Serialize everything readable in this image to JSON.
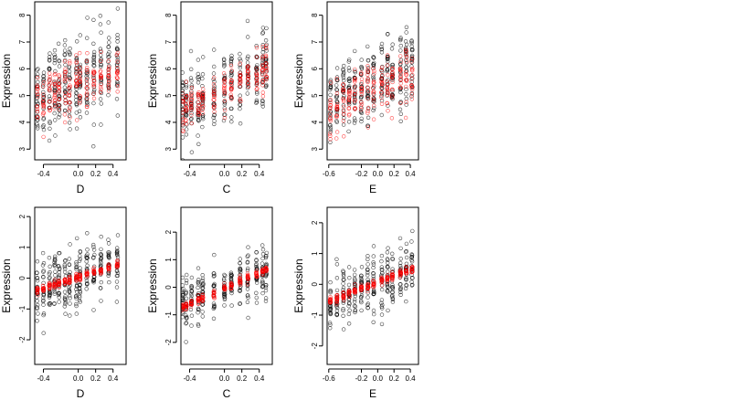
{
  "chart_data": [
    {
      "type": "scatter",
      "row": 0,
      "col": 0,
      "xlabel": "D",
      "ylabel": "Expression",
      "xlim": [
        -0.5,
        0.55
      ],
      "ylim": [
        2.6,
        8.5
      ],
      "xticks": [
        -0.4,
        0.0,
        0.2,
        0.4
      ],
      "xtick_labels": [
        "-0.4",
        "0.0",
        "0.2",
        "0.4"
      ],
      "yticks": [
        3,
        4,
        5,
        6,
        7,
        8
      ],
      "ytick_labels": [
        "3",
        "4",
        "5",
        "6",
        "7",
        "8"
      ],
      "series": [
        {
          "color": "#000000",
          "x_points": [
            -0.47,
            -0.4,
            -0.33,
            -0.27,
            -0.22,
            -0.15,
            -0.1,
            -0.02,
            0.02,
            0.1,
            0.18,
            0.26,
            0.35,
            0.45
          ],
          "y_mean": 5.6,
          "slope": 1.6,
          "spread": 1.4
        },
        {
          "color": "#ff0000",
          "x_points": [
            -0.47,
            -0.4,
            -0.33,
            -0.27,
            -0.22,
            -0.15,
            -0.1,
            -0.02,
            0.02,
            0.1,
            0.18,
            0.26,
            0.35,
            0.45
          ],
          "y_mean": 5.4,
          "slope": 1.6,
          "spread": 0.9
        }
      ]
    },
    {
      "type": "scatter",
      "row": 0,
      "col": 1,
      "xlabel": "C",
      "ylabel": "Expression",
      "xlim": [
        -0.5,
        0.55
      ],
      "ylim": [
        2.6,
        8.5
      ],
      "xticks": [
        -0.4,
        0.0,
        0.2,
        0.4
      ],
      "xtick_labels": [
        "-0.4",
        "0.0",
        "0.2",
        "0.4"
      ],
      "yticks": [
        3,
        4,
        5,
        6,
        7,
        8
      ],
      "ytick_labels": [
        "3",
        "4",
        "5",
        "6",
        "7",
        "8"
      ],
      "series": [
        {
          "color": "#000000",
          "x_points": [
            -0.48,
            -0.44,
            -0.38,
            -0.3,
            -0.25,
            -0.12,
            0.0,
            0.08,
            0.18,
            0.27,
            0.37,
            0.44,
            0.48
          ],
          "y_mean": 5.3,
          "slope": 2.2,
          "spread": 1.2
        },
        {
          "color": "#ff0000",
          "x_points": [
            -0.48,
            -0.44,
            -0.38,
            -0.3,
            -0.25,
            -0.12,
            0.0,
            0.08,
            0.18,
            0.27,
            0.37,
            0.44,
            0.48
          ],
          "y_mean": 5.3,
          "slope": 2.2,
          "spread": 0.7
        }
      ]
    },
    {
      "type": "scatter",
      "row": 0,
      "col": 2,
      "xlabel": "E",
      "ylabel": "Expression",
      "xlim": [
        -0.62,
        0.5
      ],
      "ylim": [
        2.6,
        8.5
      ],
      "xticks": [
        -0.6,
        -0.2,
        0.0,
        0.2,
        0.4
      ],
      "xtick_labels": [
        "-0.6",
        "-0.2",
        "0.0",
        "0.2",
        "0.4"
      ],
      "yticks": [
        3,
        4,
        5,
        6,
        7,
        8
      ],
      "ytick_labels": [
        "3",
        "4",
        "5",
        "6",
        "7",
        "8"
      ],
      "series": [
        {
          "color": "#000000",
          "x_points": [
            -0.58,
            -0.5,
            -0.42,
            -0.35,
            -0.28,
            -0.2,
            -0.12,
            -0.05,
            0.05,
            0.12,
            0.18,
            0.28,
            0.35,
            0.42
          ],
          "y_mean": 5.4,
          "slope": 2.0,
          "spread": 1.3
        },
        {
          "color": "#ff0000",
          "x_points": [
            -0.58,
            -0.5,
            -0.42,
            -0.35,
            -0.28,
            -0.2,
            -0.12,
            -0.05,
            0.05,
            0.12,
            0.18,
            0.28,
            0.35,
            0.42
          ],
          "y_mean": 5.2,
          "slope": 2.0,
          "spread": 0.9
        }
      ]
    },
    {
      "type": "scatter",
      "row": 1,
      "col": 0,
      "xlabel": "D",
      "ylabel": "Expression",
      "xlim": [
        -0.5,
        0.55
      ],
      "ylim": [
        -2.8,
        2.3
      ],
      "xticks": [
        -0.4,
        0.0,
        0.2,
        0.4
      ],
      "xtick_labels": [
        "-0.4",
        "0.0",
        "0.2",
        "0.4"
      ],
      "yticks": [
        -2,
        -1,
        0,
        1,
        2
      ],
      "ytick_labels": [
        "-2",
        "-1",
        "0",
        "1",
        "2"
      ],
      "series": [
        {
          "color": "#000000",
          "x_points": [
            -0.47,
            -0.4,
            -0.33,
            -0.27,
            -0.22,
            -0.15,
            -0.1,
            -0.02,
            0.02,
            0.1,
            0.18,
            0.26,
            0.35,
            0.45
          ],
          "y_mean": 0.05,
          "slope": 1.2,
          "spread": 0.9
        },
        {
          "color": "#ff0000",
          "x_points": [
            -0.47,
            -0.4,
            -0.33,
            -0.27,
            -0.22,
            -0.15,
            -0.1,
            -0.02,
            0.02,
            0.1,
            0.18,
            0.26,
            0.35,
            0.45
          ],
          "y_mean": 0.05,
          "slope": 1.2,
          "spread": 0.12
        }
      ]
    },
    {
      "type": "scatter",
      "row": 1,
      "col": 1,
      "xlabel": "C",
      "ylabel": "Expression",
      "xlim": [
        -0.5,
        0.55
      ],
      "ylim": [
        -2.8,
        2.9
      ],
      "xticks": [
        -0.4,
        0.0,
        0.2,
        0.4
      ],
      "xtick_labels": [
        "-0.4",
        "0.0",
        "0.2",
        "0.4"
      ],
      "yticks": [
        -2,
        -1,
        0,
        1,
        2
      ],
      "ytick_labels": [
        "-2",
        "-1",
        "0",
        "1",
        "2"
      ],
      "series": [
        {
          "color": "#000000",
          "x_points": [
            -0.48,
            -0.44,
            -0.38,
            -0.3,
            -0.25,
            -0.12,
            0.0,
            0.08,
            0.18,
            0.27,
            0.37,
            0.44,
            0.48
          ],
          "y_mean": 0.0,
          "slope": 1.9,
          "spread": 0.8
        },
        {
          "color": "#ff0000",
          "x_points": [
            -0.48,
            -0.44,
            -0.38,
            -0.3,
            -0.25,
            -0.12,
            0.0,
            0.08,
            0.18,
            0.27,
            0.37,
            0.44,
            0.48
          ],
          "y_mean": 0.0,
          "slope": 1.9,
          "spread": 0.13
        }
      ]
    },
    {
      "type": "scatter",
      "row": 1,
      "col": 2,
      "xlabel": "E",
      "ylabel": "Expression",
      "xlim": [
        -0.62,
        0.5
      ],
      "ylim": [
        -2.6,
        2.5
      ],
      "xticks": [
        -0.6,
        -0.2,
        0.0,
        0.2,
        0.4
      ],
      "xtick_labels": [
        "-0.6",
        "-0.2",
        "0.0",
        "0.2",
        "0.4"
      ],
      "yticks": [
        -2,
        -1,
        0,
        1,
        2
      ],
      "ytick_labels": [
        "-2",
        "-1",
        "0",
        "1",
        "2"
      ],
      "series": [
        {
          "color": "#000000",
          "x_points": [
            -0.58,
            -0.5,
            -0.42,
            -0.35,
            -0.28,
            -0.2,
            -0.12,
            -0.05,
            0.05,
            0.12,
            0.18,
            0.28,
            0.35,
            0.42
          ],
          "y_mean": 0.0,
          "slope": 1.4,
          "spread": 0.85
        },
        {
          "color": "#ff0000",
          "x_points": [
            -0.58,
            -0.5,
            -0.42,
            -0.35,
            -0.28,
            -0.2,
            -0.12,
            -0.05,
            0.05,
            0.12,
            0.18,
            0.28,
            0.35,
            0.42
          ],
          "y_mean": 0.0,
          "slope": 1.4,
          "spread": 0.12
        }
      ]
    }
  ]
}
